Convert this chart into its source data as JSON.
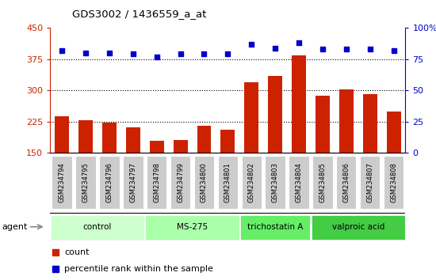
{
  "title": "GDS3002 / 1436559_a_at",
  "samples": [
    "GSM234794",
    "GSM234795",
    "GSM234796",
    "GSM234797",
    "GSM234798",
    "GSM234799",
    "GSM234800",
    "GSM234801",
    "GSM234802",
    "GSM234803",
    "GSM234804",
    "GSM234805",
    "GSM234806",
    "GSM234807",
    "GSM234808"
  ],
  "counts": [
    238,
    228,
    222,
    210,
    178,
    180,
    215,
    205,
    320,
    335,
    385,
    287,
    302,
    290,
    248
  ],
  "percentile_ranks": [
    82,
    80,
    80,
    79,
    77,
    79,
    79,
    79,
    87,
    84,
    88,
    83,
    83,
    83,
    82
  ],
  "bar_color": "#cc2200",
  "dot_color": "#0000cc",
  "ylim_left": [
    150,
    450
  ],
  "ylim_right": [
    0,
    100
  ],
  "yticks_left": [
    150,
    225,
    300,
    375,
    450
  ],
  "yticks_right": [
    0,
    25,
    50,
    75,
    100
  ],
  "groups": [
    {
      "label": "control",
      "start": 0,
      "end": 3,
      "color": "#ccffcc"
    },
    {
      "label": "MS-275",
      "start": 4,
      "end": 7,
      "color": "#aaffaa"
    },
    {
      "label": "trichostatin A",
      "start": 8,
      "end": 10,
      "color": "#66ee66"
    },
    {
      "label": "valproic acid",
      "start": 11,
      "end": 14,
      "color": "#44cc44"
    }
  ],
  "xlabel_agent": "agent",
  "legend_count_label": "count",
  "legend_percentile_label": "percentile rank within the sample",
  "bar_width": 0.6,
  "axis_color_left": "#cc2200",
  "axis_color_right": "#0000cc",
  "background_plot": "#ffffff",
  "tick_label_bg": "#cccccc",
  "group_border_color": "#888888"
}
